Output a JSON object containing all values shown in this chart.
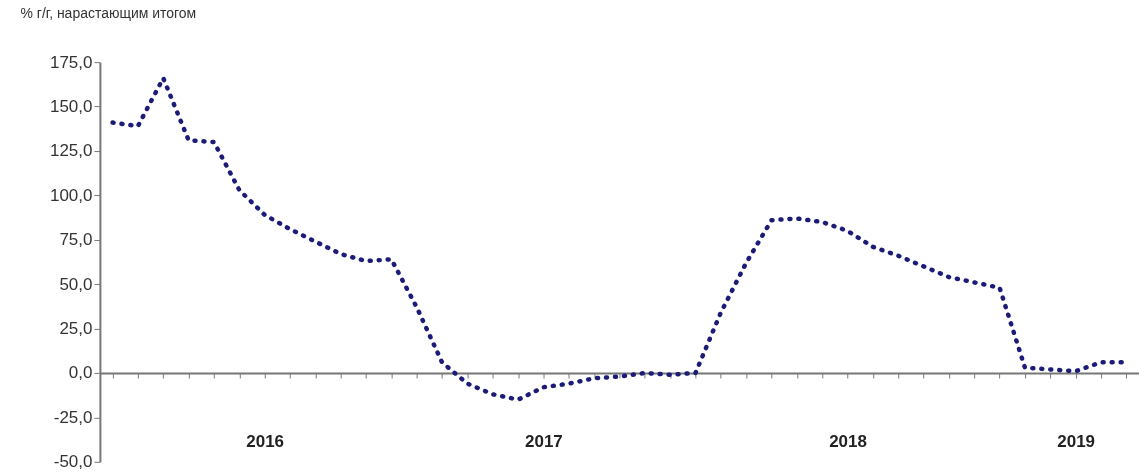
{
  "chart_data": {
    "type": "line",
    "ylabel": "% г/г, нарастающим итогом",
    "categories": [
      null,
      null,
      null,
      null,
      null,
      null,
      "2016",
      null,
      null,
      null,
      null,
      null,
      null,
      null,
      null,
      null,
      null,
      "2017",
      null,
      null,
      null,
      null,
      null,
      null,
      null,
      null,
      null,
      null,
      null,
      "2018",
      null,
      null,
      null,
      null,
      null,
      null,
      null,
      null,
      "2019",
      null,
      null
    ],
    "series": [
      {
        "color": "#1c1c78",
        "values": [
          141,
          139,
          166,
          131,
          130,
          103,
          89,
          81,
          74,
          67,
          63,
          64,
          37,
          6,
          -6,
          -12,
          -15,
          -8,
          -6,
          -3,
          -2,
          0,
          -1,
          0,
          34,
          62,
          86,
          87,
          85,
          80,
          71,
          66,
          60,
          54,
          51,
          48,
          3,
          2,
          1,
          6,
          6
        ]
      }
    ],
    "ylim": [
      -50,
      175
    ],
    "yticks": [
      {
        "value": -50,
        "label": "-50,0"
      },
      {
        "value": -25,
        "label": "-25,0"
      },
      {
        "value": 0,
        "label": "0,0"
      },
      {
        "value": 25,
        "label": "25,0"
      },
      {
        "value": 50,
        "label": "50,0"
      },
      {
        "value": 75,
        "label": "75,0"
      },
      {
        "value": 100,
        "label": "100,0"
      },
      {
        "value": 125,
        "label": "125,0"
      },
      {
        "value": 150,
        "label": "150,0"
      },
      {
        "value": 175,
        "label": "175,0"
      }
    ],
    "marker": "none",
    "line_style": "dotted"
  }
}
